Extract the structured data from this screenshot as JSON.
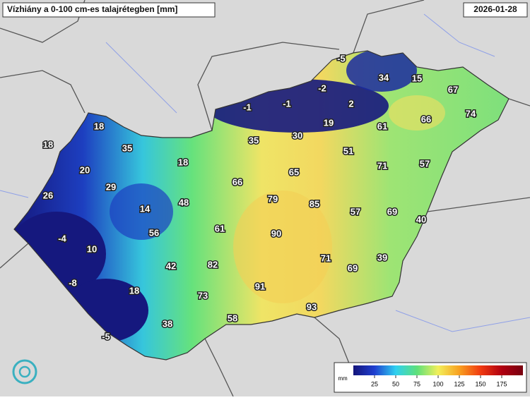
{
  "header": {
    "title": "Vízhiány a 0-100 cm-es talajrétegben [mm]",
    "date": "2026-01-28"
  },
  "station_values": [
    -5,
    34,
    15,
    67,
    -2,
    2,
    -1,
    -1,
    66,
    74,
    19,
    61,
    18,
    30,
    35,
    18,
    35,
    51,
    20,
    18,
    71,
    57,
    65,
    66,
    29,
    26,
    79,
    85,
    48,
    14,
    57,
    69,
    40,
    -4,
    56,
    61,
    90,
    10,
    71,
    39,
    82,
    42,
    69,
    -8,
    18,
    91,
    73,
    93,
    58,
    38,
    -5
  ],
  "legend": {
    "unit": "mm",
    "lim": [
      0,
      200
    ],
    "ticks": [
      25,
      50,
      75,
      100,
      125,
      150,
      175
    ],
    "colors": [
      "#14147a",
      "#1f3fd0",
      "#2fd0f0",
      "#5ee07a",
      "#f2ef5a",
      "#f8a020",
      "#f03a10",
      "#b00010",
      "#780010"
    ]
  }
}
